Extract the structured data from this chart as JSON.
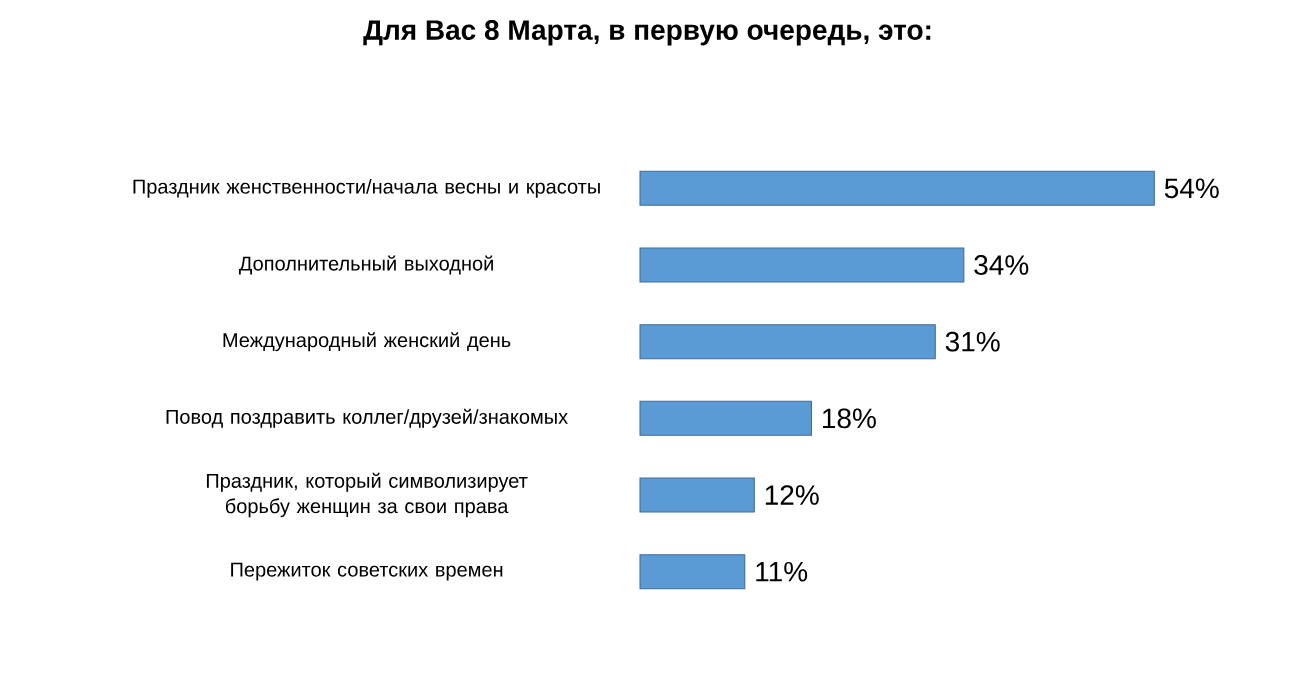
{
  "chart_data": {
    "type": "bar",
    "orientation": "horizontal",
    "title": "Для Вас 8 Марта, в первую очередь, это:",
    "categories": [
      "Праздник женственности/начала весны и красоты",
      "Дополнительный выходной",
      "Международный женский день",
      "Повод поздравить коллег/друзей/знакомых",
      "Праздник, который символизирует борьбу женщин за свои права",
      "Пережиток советских времен"
    ],
    "values": [
      54,
      34,
      31,
      18,
      12,
      11
    ],
    "value_labels": [
      "54%",
      "34%",
      "31%",
      "18%",
      "12%",
      "11%"
    ],
    "color": "#5b9bd5"
  }
}
